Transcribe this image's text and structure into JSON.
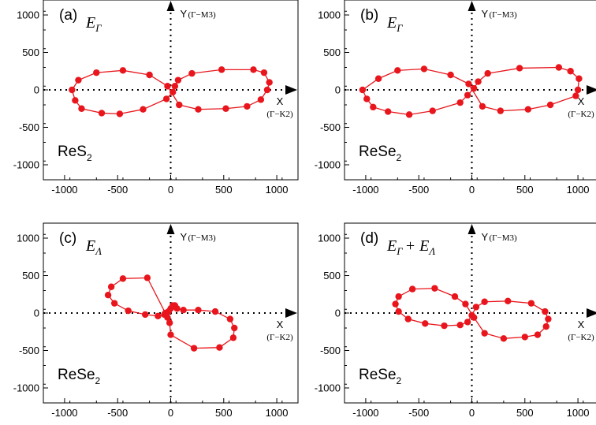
{
  "colors": {
    "series": "#e8161c",
    "axis": "#000000"
  },
  "chart_data": [
    {
      "type": "scatter",
      "panel_label": "(a)",
      "energy_symbol": "E",
      "energy_subscript": "Γ",
      "energy_extra": "",
      "material": "ReS",
      "material_subscript": "2",
      "y_axis_name": "Y",
      "y_axis_direction": "(Γ−M3)",
      "x_axis_name": "X",
      "x_axis_direction": "(Γ−K2)",
      "xlim": [
        -1200,
        1200
      ],
      "ylim": [
        -1200,
        1200
      ],
      "xticks": [
        -1000,
        -500,
        0,
        500,
        1000
      ],
      "yticks": [
        -1000,
        -500,
        0,
        500,
        1000
      ],
      "xtick_labels": [
        "-1000",
        "-500",
        "0",
        "500",
        "1000"
      ],
      "ytick_labels": [
        "-1000",
        "-500",
        "0",
        "500",
        "1000"
      ],
      "series": [
        {
          "x": [
            -930,
            -900,
            -840,
            -650,
            -480,
            -260,
            -40,
            20,
            40,
            70,
            200,
            480,
            780,
            880,
            930,
            910,
            850,
            720,
            520,
            260,
            80,
            -30,
            -200,
            -450,
            -700,
            -870
          ],
          "y": [
            0,
            -140,
            -250,
            -310,
            -320,
            -260,
            -120,
            -30,
            50,
            130,
            220,
            270,
            270,
            230,
            100,
            0,
            -130,
            -220,
            -250,
            -260,
            -200,
            50,
            200,
            260,
            230,
            130
          ]
        }
      ]
    },
    {
      "type": "scatter",
      "panel_label": "(b)",
      "energy_symbol": "E",
      "energy_subscript": "Γ",
      "energy_extra": "",
      "material": "ReSe",
      "material_subscript": "2",
      "y_axis_name": "Y",
      "y_axis_direction": "(Γ−M3)",
      "x_axis_name": "X",
      "x_axis_direction": "(Γ−K2)",
      "xlim": [
        -1200,
        1200
      ],
      "ylim": [
        -1200,
        1200
      ],
      "xticks": [
        -1000,
        -500,
        0,
        500,
        1000
      ],
      "yticks": [
        -1000,
        -500,
        0,
        500,
        1000
      ],
      "xtick_labels": [
        "-1000",
        "-500",
        "0",
        "500",
        "1000"
      ],
      "ytick_labels": [
        "-1000",
        "-500",
        "0",
        "500",
        "1000"
      ],
      "series": [
        {
          "x": [
            -1030,
            -990,
            -930,
            -790,
            -590,
            -370,
            -110,
            -40,
            20,
            60,
            150,
            450,
            820,
            930,
            1010,
            1000,
            980,
            740,
            530,
            270,
            100,
            -30,
            -200,
            -450,
            -700,
            -880
          ],
          "y": [
            0,
            -120,
            -230,
            -290,
            -330,
            -280,
            -170,
            -70,
            20,
            110,
            220,
            290,
            300,
            250,
            150,
            0,
            -80,
            -200,
            -260,
            -280,
            -220,
            80,
            200,
            280,
            260,
            150
          ]
        }
      ]
    },
    {
      "type": "scatter",
      "panel_label": "(c)",
      "energy_symbol": "E",
      "energy_subscript": "Λ",
      "energy_extra": "",
      "material": "ReSe",
      "material_subscript": "2",
      "y_axis_name": "Y",
      "y_axis_direction": "(Γ−M3)",
      "x_axis_name": "X",
      "x_axis_direction": "(Γ−K2)",
      "xlim": [
        -1200,
        1200
      ],
      "ylim": [
        -1200,
        1200
      ],
      "xticks": [
        -1000,
        -500,
        0,
        500,
        1000
      ],
      "yticks": [
        -1000,
        -500,
        0,
        500,
        1000
      ],
      "xtick_labels": [
        "-1000",
        "-500",
        "0",
        "500",
        "1000"
      ],
      "ytick_labels": [
        "-1000",
        "-500",
        "0",
        "500",
        "1000"
      ],
      "series": [
        {
          "x": [
            -220,
            -450,
            -560,
            -590,
            -530,
            -400,
            -240,
            -120,
            -60,
            -20,
            0,
            20,
            40,
            60,
            120,
            260,
            420,
            560,
            600,
            590,
            460,
            220,
            0,
            -10,
            -30,
            -50
          ],
          "y": [
            470,
            460,
            350,
            240,
            130,
            30,
            -20,
            -40,
            -20,
            20,
            60,
            100,
            100,
            60,
            40,
            40,
            20,
            -80,
            -200,
            -330,
            -460,
            -470,
            -290,
            -130,
            -60,
            0
          ]
        }
      ]
    },
    {
      "type": "scatter",
      "panel_label": "(d)",
      "energy_symbol": "E",
      "energy_subscript": "Γ",
      "energy_extra": "+ E",
      "energy_extra_subscript": "Λ",
      "material": "ReSe",
      "material_subscript": "2",
      "y_axis_name": "Y",
      "y_axis_direction": "(Γ−M3)",
      "x_axis_name": "X",
      "x_axis_direction": "(Γ−K2)",
      "xlim": [
        -1200,
        1200
      ],
      "ylim": [
        -1200,
        1200
      ],
      "xticks": [
        -1000,
        -500,
        0,
        500,
        1000
      ],
      "yticks": [
        -1000,
        -500,
        0,
        500,
        1000
      ],
      "xtick_labels": [
        "-1000",
        "-500",
        "0",
        "500",
        "1000"
      ],
      "ytick_labels": [
        "-1000",
        "-500",
        "0",
        "500",
        "1000"
      ],
      "series": [
        {
          "x": [
            -720,
            -690,
            -600,
            -440,
            -260,
            -110,
            -40,
            0,
            40,
            120,
            340,
            560,
            690,
            720,
            700,
            620,
            500,
            300,
            120,
            20,
            -60,
            -160,
            -350,
            -560,
            -690
          ],
          "y": [
            120,
            20,
            -80,
            -140,
            -170,
            -160,
            -120,
            -30,
            80,
            150,
            160,
            130,
            20,
            -80,
            -180,
            -290,
            -320,
            -340,
            -270,
            -60,
            120,
            220,
            330,
            320,
            220
          ]
        }
      ]
    }
  ]
}
